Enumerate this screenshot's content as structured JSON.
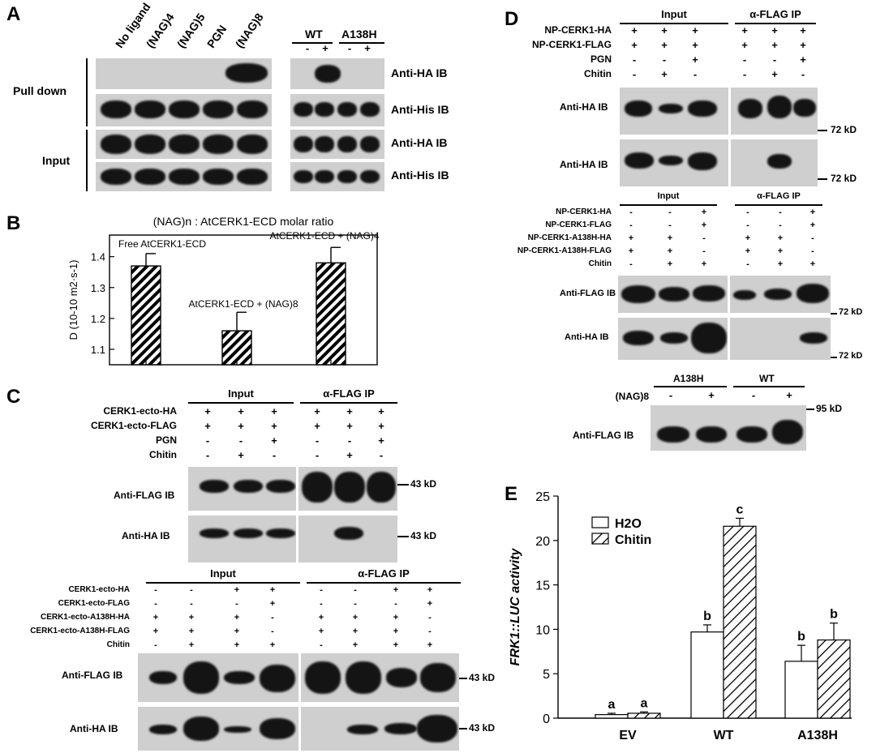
{
  "panel_labels": {
    "A": "A",
    "B": "B",
    "C": "C",
    "D": "D",
    "E": "E"
  },
  "panelA": {
    "lane_labels": [
      "No ligand",
      "(NAG)4",
      "(NAG)5",
      "PGN",
      "(NAG)8"
    ],
    "wt": "WT",
    "mut": "A138H",
    "wt_signs": [
      "-",
      "+"
    ],
    "mut_signs": [
      "-",
      "+"
    ],
    "pull_down": "Pull down",
    "input": "Input",
    "ib_labels": [
      "Anti-HA IB",
      "Anti-His IB",
      "Anti-HA IB",
      "Anti-His IB"
    ]
  },
  "panelB": {
    "title": "(NAG)n : AtCERK1-ECD molar ratio",
    "ylabel": "D (10-10 m2·s-1)",
    "annotations": [
      "Free AtCERK1-ECD",
      "AtCERK1-ECD + (NAG)8",
      "AtCERK1-ECD + (NAG)4"
    ],
    "chart_data": {
      "type": "bar",
      "title": "(NAG)n : AtCERK1-ECD molar ratio",
      "ylabel": "D (10-10 m2·s-1)",
      "categories": [
        "Free AtCERK1-ECD",
        "AtCERK1-ECD + (NAG)8",
        "AtCERK1-ECD + (NAG)4"
      ],
      "values": [
        1.37,
        1.16,
        1.38
      ],
      "errors": [
        0.04,
        0.06,
        0.05
      ],
      "ylim": [
        1.05,
        1.47
      ],
      "yticks": [
        "1.1",
        "1.2",
        "1.3",
        "1.4"
      ],
      "pattern": "hatched"
    }
  },
  "panelC": {
    "input": "Input",
    "ip": "α-FLAG IP",
    "top_rows": [
      {
        "label": "CERK1-ecto-HA",
        "signs": [
          "+",
          "+",
          "+",
          "+",
          "+",
          "+"
        ]
      },
      {
        "label": "CERK1-ecto-FLAG",
        "signs": [
          "+",
          "+",
          "+",
          "+",
          "+",
          "+"
        ]
      },
      {
        "label": "PGN",
        "signs": [
          "-",
          "-",
          "+",
          "-",
          "-",
          "+"
        ]
      },
      {
        "label": "Chitin",
        "signs": [
          "-",
          "+",
          "-",
          "-",
          "+",
          "-"
        ]
      }
    ],
    "top_ib": [
      "Anti-FLAG IB",
      "Anti-HA IB"
    ],
    "top_markers": [
      "43 kD",
      "43 kD"
    ],
    "bottom_rows": [
      {
        "label": "CERK1-ecto-HA",
        "signs": [
          "-",
          "-",
          "+",
          "+",
          "-",
          "-",
          "+",
          "+"
        ]
      },
      {
        "label": "CERK1-ecto-FLAG",
        "signs": [
          "-",
          "-",
          "-",
          "+",
          "-",
          "-",
          "-",
          "+"
        ]
      },
      {
        "label": "CERK1-ecto-A138H-HA",
        "signs": [
          "+",
          "+",
          "+",
          "-",
          "+",
          "+",
          "+",
          "-"
        ]
      },
      {
        "label": "CERK1-ecto-A138H-FLAG",
        "signs": [
          "+",
          "+",
          "+",
          "-",
          "+",
          "+",
          "+",
          "-"
        ]
      },
      {
        "label": "Chitin",
        "signs": [
          "-",
          "+",
          "+",
          "+",
          "-",
          "+",
          "+",
          "+"
        ]
      }
    ],
    "bottom_ib": [
      "Anti-FLAG IB",
      "Anti-HA IB"
    ],
    "bottom_markers": [
      "43 kD",
      "43 kD"
    ]
  },
  "panelD": {
    "input": "Input",
    "ip": "α-FLAG IP",
    "top_rows": [
      {
        "label": "NP-CERK1-HA",
        "signs": [
          "+",
          "+",
          "+",
          "+",
          "+",
          "+"
        ]
      },
      {
        "label": "NP-CERK1-FLAG",
        "signs": [
          "+",
          "+",
          "+",
          "+",
          "+",
          "+"
        ]
      },
      {
        "label": "PGN",
        "signs": [
          "-",
          "-",
          "+",
          "-",
          "-",
          "+"
        ]
      },
      {
        "label": "Chitin",
        "signs": [
          "-",
          "+",
          "-",
          "-",
          "+",
          "-"
        ]
      }
    ],
    "top_ib": [
      "Anti-HA IB",
      "Anti-HA IB"
    ],
    "top_markers": [
      "72 kD",
      "72 kD"
    ],
    "mid_rows": [
      {
        "label": "NP-CERK1-HA",
        "signs": [
          "-",
          "-",
          "+",
          "-",
          "-",
          "+"
        ]
      },
      {
        "label": "NP-CERK1-FLAG",
        "signs": [
          "-",
          "-",
          "+",
          "-",
          "-",
          "+"
        ]
      },
      {
        "label": "NP-CERK1-A138H-HA",
        "signs": [
          "+",
          "+",
          "-",
          "+",
          "+",
          "-"
        ]
      },
      {
        "label": "NP-CERK1-A138H-FLAG",
        "signs": [
          "+",
          "+",
          "-",
          "+",
          "+",
          "-"
        ]
      },
      {
        "label": "Chitin",
        "signs": [
          "-",
          "+",
          "+",
          "-",
          "+",
          "+"
        ]
      }
    ],
    "mid_ib": [
      "Anti-FLAG IB",
      "Anti-HA IB"
    ],
    "mid_markers": [
      "72 kD",
      "72 kD"
    ],
    "bottom": {
      "mut": "A138H",
      "wt": "WT",
      "row": "(NAG)8",
      "signs": [
        "-",
        "+",
        "-",
        "+"
      ],
      "ib": "Anti-FLAG IB",
      "marker": "95 kD"
    }
  },
  "panelE": {
    "ylabel": "FRK1::LUC activity",
    "legend": [
      "H2O",
      "Chitin"
    ],
    "chart_data": {
      "type": "bar",
      "ylabel": "FRK1::LUC activity",
      "categories": [
        "EV",
        "WT",
        "A138H"
      ],
      "series": [
        {
          "name": "H2O",
          "values": [
            0.4,
            9.7,
            6.4
          ],
          "errors": [
            0.15,
            0.8,
            1.8
          ],
          "letters": [
            "a",
            "b",
            "b"
          ]
        },
        {
          "name": "Chitin",
          "values": [
            0.55,
            21.6,
            8.8
          ],
          "errors": [
            0.15,
            0.9,
            1.9
          ],
          "letters": [
            "a",
            "c",
            "b"
          ]
        }
      ],
      "ylim": [
        0,
        25
      ],
      "yticks": [
        "0",
        "5",
        "10",
        "15",
        "20",
        "25"
      ],
      "legend_position": "top-left"
    }
  }
}
